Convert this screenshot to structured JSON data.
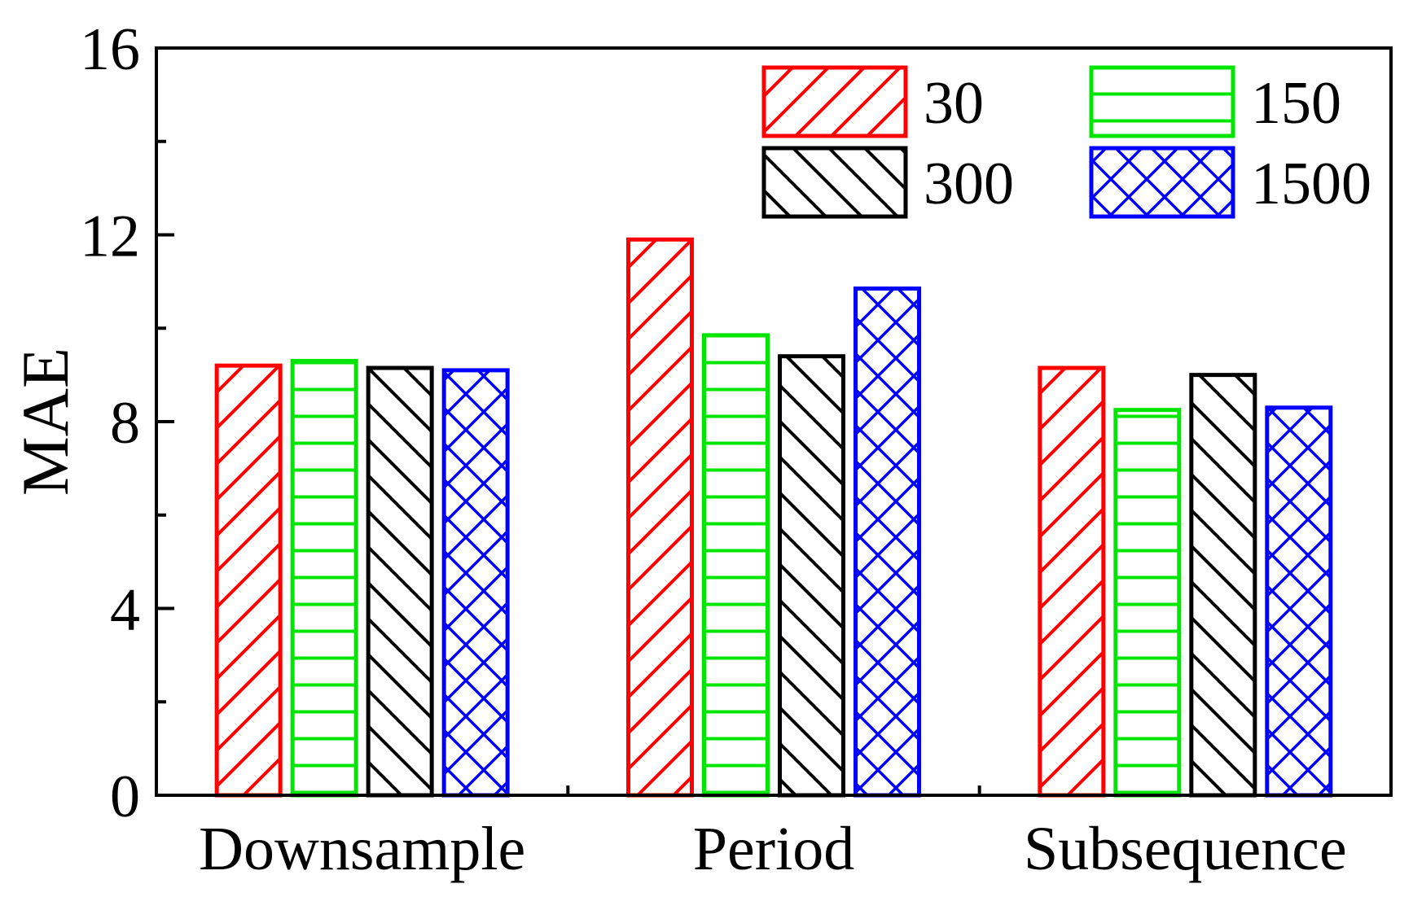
{
  "chart_data": {
    "type": "bar",
    "title": "",
    "xlabel": "",
    "ylabel": "MAE",
    "ylim": [
      0,
      16
    ],
    "yticks": [
      0,
      4,
      8,
      12,
      16
    ],
    "ytick_labels": [
      "0",
      "4",
      "8",
      "12",
      "16"
    ],
    "grid": false,
    "legend_position": "top-right",
    "categories": [
      "Downsample",
      "Period",
      "Subsequence"
    ],
    "series": [
      {
        "name": "30",
        "color": "#ff0000",
        "pattern": "diagonal-up",
        "values": [
          9.2,
          11.9,
          9.15
        ]
      },
      {
        "name": "150",
        "color": "#00e600",
        "pattern": "horizontal",
        "values": [
          9.3,
          9.85,
          8.25
        ]
      },
      {
        "name": "300",
        "color": "#000000",
        "pattern": "diagonal-down",
        "values": [
          9.15,
          9.4,
          9.0
        ]
      },
      {
        "name": "1500",
        "color": "#0000ff",
        "pattern": "crosshatch",
        "values": [
          9.1,
          10.85,
          8.3
        ]
      }
    ]
  }
}
